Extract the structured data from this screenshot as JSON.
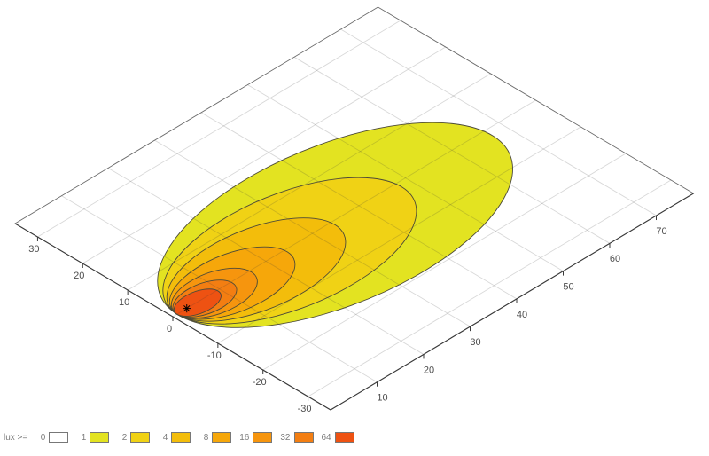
{
  "chart_data": {
    "type": "heatmap",
    "subtype": "isolux-contour-on-3d-plane",
    "title": "",
    "grid": true,
    "x_axis": {
      "label": "",
      "range": [
        -35,
        35
      ],
      "ticks": [
        30,
        20,
        10,
        0,
        -10,
        -20,
        -30
      ]
    },
    "y_axis": {
      "label": "",
      "range": [
        0,
        78
      ],
      "ticks": [
        10,
        20,
        30,
        40,
        50,
        60,
        70
      ]
    },
    "legend": {
      "label": "lux >=",
      "entries": [
        {
          "level": "0",
          "color": "#ffffff"
        },
        {
          "level": "1",
          "color": "#e3e321"
        },
        {
          "level": "2",
          "color": "#f0d215"
        },
        {
          "level": "4",
          "color": "#f3bd0b"
        },
        {
          "level": "8",
          "color": "#f6a70a"
        },
        {
          "level": "16",
          "color": "#f6950e"
        },
        {
          "level": "32",
          "color": "#f37e12"
        },
        {
          "level": "64",
          "color": "#ee5212"
        }
      ]
    },
    "source_marker": {
      "symbol": "asterisk",
      "x": 0,
      "y": 3
    },
    "contours": [
      {
        "level": 1,
        "color": "#e3e321",
        "start_y": 0.9,
        "tip_y": 67.0,
        "half_width": 18.5,
        "tilt_deg": 1.7
      },
      {
        "level": 2,
        "color": "#f0d215",
        "start_y": 0.9,
        "tip_y": 48.0,
        "half_width": 13.3,
        "tilt_deg": 1.7
      },
      {
        "level": 4,
        "color": "#f3bd0b",
        "start_y": 0.9,
        "tip_y": 34.0,
        "half_width": 9.5,
        "tilt_deg": 1.7
      },
      {
        "level": 8,
        "color": "#f6a70a",
        "start_y": 0.9,
        "tip_y": 24.0,
        "half_width": 6.8,
        "tilt_deg": 1.7
      },
      {
        "level": 16,
        "color": "#f6950e",
        "start_y": 0.9,
        "tip_y": 16.5,
        "half_width": 4.9,
        "tilt_deg": 1.7
      },
      {
        "level": 32,
        "color": "#f37e12",
        "start_y": 0.9,
        "tip_y": 12.5,
        "half_width": 3.6,
        "tilt_deg": 1.7
      },
      {
        "level": 64,
        "color": "#ee5212",
        "start_y": 0.9,
        "tip_y": 9.5,
        "half_width": 2.6,
        "tilt_deg": 1.7
      }
    ]
  }
}
